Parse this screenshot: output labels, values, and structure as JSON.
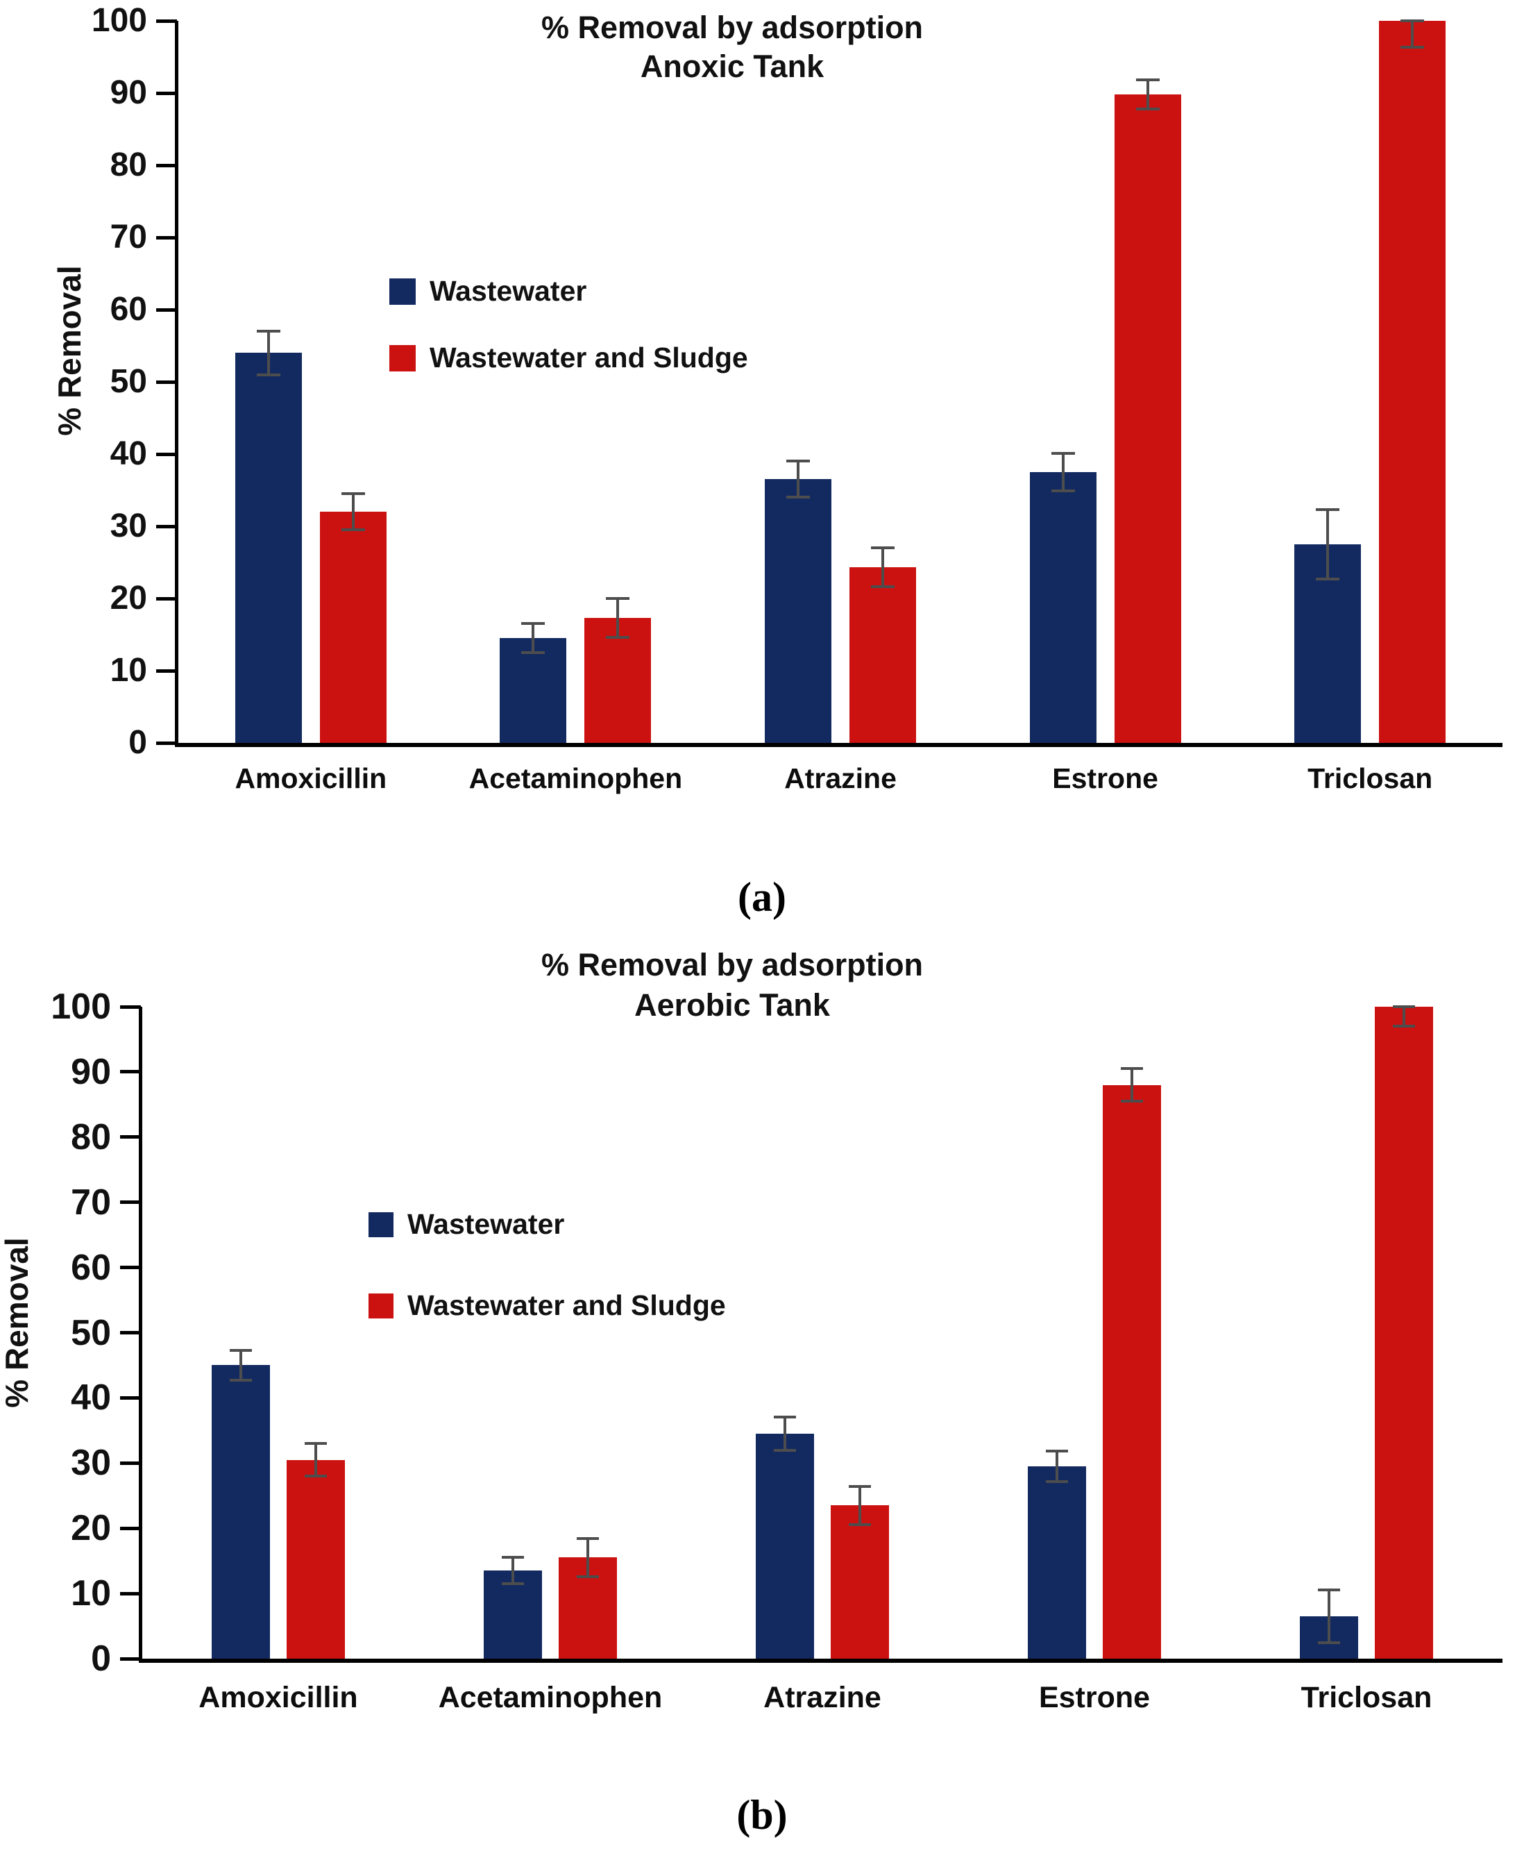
{
  "figure": {
    "caption_a": "(a)",
    "caption_b": "(b)"
  },
  "colors": {
    "wastewater_navy": "#132a60",
    "sludge_red": "#cc1111",
    "error_bar_gray": "#4d4d4d",
    "axis_black": "#000000"
  },
  "chart_data": [
    {
      "type": "bar",
      "title_line1": "% Removal by adsorption",
      "title_line2": "Anoxic Tank",
      "ylabel": "% Removal",
      "xlabel": "",
      "ylim": [
        0,
        100
      ],
      "yticks": [
        0,
        10,
        20,
        30,
        40,
        50,
        60,
        70,
        80,
        90,
        100
      ],
      "grid": false,
      "legend_position": "inside-upper-left",
      "categories": [
        "Amoxicillin",
        "Acetaminophen",
        "Atrazine",
        "Estrone",
        "Triclosan"
      ],
      "series": [
        {
          "name": "Wastewater",
          "color": "#132a60",
          "values": [
            54,
            14.5,
            36.5,
            37.5,
            27.5
          ],
          "errors": [
            3,
            2,
            2.5,
            2.6,
            4.8
          ]
        },
        {
          "name": "Wastewater and Sludge",
          "color": "#cc1111",
          "values": [
            32,
            17.3,
            24.3,
            89.8,
            100
          ],
          "errors": [
            2.5,
            2.7,
            2.7,
            2,
            3.7
          ]
        }
      ]
    },
    {
      "type": "bar",
      "title_line1": "% Removal by adsorption",
      "title_line2": "Aerobic Tank",
      "ylabel": "% Removal",
      "xlabel": "",
      "ylim": [
        0,
        100
      ],
      "yticks": [
        0,
        10,
        20,
        30,
        40,
        50,
        60,
        70,
        80,
        90,
        100
      ],
      "grid": false,
      "legend_position": "inside-upper-left",
      "categories": [
        "Amoxicillin",
        "Acetaminophen",
        "Atrazine",
        "Estrone",
        "Triclosan"
      ],
      "series": [
        {
          "name": "Wastewater",
          "color": "#132a60",
          "values": [
            45,
            13.5,
            34.5,
            29.5,
            6.5
          ],
          "errors": [
            2.3,
            2,
            2.6,
            2.3,
            4
          ]
        },
        {
          "name": "Wastewater and Sludge",
          "color": "#cc1111",
          "values": [
            30.5,
            15.5,
            23.5,
            88,
            100
          ],
          "errors": [
            2.5,
            2.9,
            2.9,
            2.5,
            3
          ]
        }
      ]
    }
  ]
}
